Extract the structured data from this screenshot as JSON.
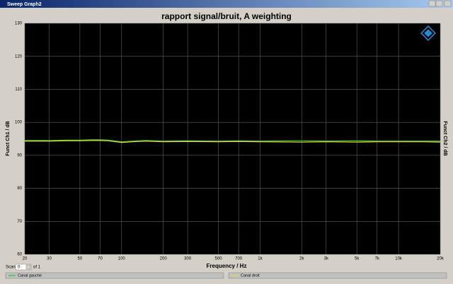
{
  "window": {
    "title": "Sweep Graph2"
  },
  "scan": {
    "label": "Scan",
    "value": "0",
    "of": "of 1"
  },
  "chart_data": {
    "type": "line",
    "title": "rapport signal/bruit, A weighting",
    "xlabel": "Frequency / Hz",
    "ylabel": "Funct Ch1 / dB",
    "y2label": "Funct Ch2 / dB",
    "xscale": "log",
    "grid": true,
    "xlim": [
      20,
      20000
    ],
    "ylim": [
      60,
      130
    ],
    "xticks": [
      20,
      30,
      50,
      70,
      100,
      200,
      300,
      500,
      700,
      {
        "value": 1000,
        "label": "1k"
      },
      {
        "value": 2000,
        "label": "2k"
      },
      {
        "value": 3000,
        "label": "3k"
      },
      {
        "value": 5000,
        "label": "5k"
      },
      {
        "value": 7000,
        "label": "7k"
      },
      {
        "value": 10000,
        "label": "10k"
      },
      {
        "value": 20000,
        "label": "20k"
      }
    ],
    "yticks": [
      60,
      70,
      80,
      90,
      100,
      110,
      120,
      130
    ],
    "x": [
      20,
      30,
      40,
      50,
      60,
      70,
      80,
      100,
      120,
      150,
      200,
      300,
      500,
      700,
      1000,
      2000,
      3000,
      5000,
      7000,
      10000,
      15000,
      20000
    ],
    "series": [
      {
        "name": "Canal gauche",
        "color": "#3cc83c",
        "values": [
          94.5,
          94.5,
          94.6,
          94.6,
          94.7,
          94.7,
          94.6,
          94.1,
          94.3,
          94.5,
          94.3,
          94.4,
          94.3,
          94.4,
          94.3,
          94.4,
          94.3,
          94.4,
          94.3,
          94.3,
          94.3,
          94.3
        ]
      },
      {
        "name": "Canal droit",
        "color": "#d8e030",
        "values": [
          94.3,
          94.3,
          94.4,
          94.4,
          94.5,
          94.5,
          94.4,
          93.9,
          94.1,
          94.3,
          94.1,
          94.2,
          94.1,
          94.2,
          94.1,
          94.0,
          94.1,
          94.0,
          94.1,
          94.1,
          94.1,
          94.0
        ]
      }
    ]
  }
}
